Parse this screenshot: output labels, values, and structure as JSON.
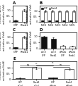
{
  "chart_data": [
    {
      "type": "bar",
      "title": "A",
      "y_label": "Relative Notch\nactivation (fold)",
      "categories": [
        "GFP",
        "Rheb1"
      ],
      "values": [
        0.12,
        1.0
      ],
      "errors": [
        0.04,
        0.08
      ],
      "colors": [
        "#111111",
        "#ffffff"
      ],
      "ylim": [
        0,
        1.4
      ],
      "yticks": [
        0,
        0.5,
        1.0
      ]
    },
    {
      "type": "bar",
      "title": "B",
      "y_label": "Relative Notch\nactivation (fold)",
      "categories": [
        "NIC1",
        "NIC2",
        "NIC3",
        "NIC4",
        "NIC5"
      ],
      "series": [
        {
          "name": "GFP",
          "color": "#111111",
          "values": [
            0.12,
            0.12,
            0.12,
            0.12,
            0.12
          ],
          "errors": [
            0.04,
            0.03,
            0.03,
            0.04,
            0.03
          ]
        },
        {
          "name": "Rheb1",
          "color": "#ffffff",
          "values": [
            1.0,
            1.0,
            1.0,
            1.0,
            1.0
          ],
          "errors": [
            0.09,
            0.08,
            0.07,
            0.09,
            0.08
          ]
        }
      ],
      "legend": "upper left",
      "ylim": [
        0,
        1.5
      ],
      "yticks": [
        0,
        0.5,
        1.0
      ]
    },
    {
      "type": "bar",
      "title": "C",
      "y_label": "Relative Notch\nactivation (fold)",
      "categories": [
        "GFP",
        "Rheb1"
      ],
      "values": [
        0.1,
        1.0
      ],
      "errors": [
        0.03,
        0.1
      ],
      "colors": [
        "#111111",
        "#ffffff"
      ],
      "ylim": [
        0,
        1.4
      ],
      "yticks": [
        0,
        0.5,
        1.0
      ]
    },
    {
      "type": "bar",
      "title": "D",
      "y_label": "Relative Notch\nactivation (fold)",
      "categories": [
        "siCtrl\nGFP",
        "siCtrl\nRheb1",
        "siRheb\nGFP",
        "siRheb\nRheb1"
      ],
      "values": [
        0.95,
        0.8,
        0.25,
        0.18
      ],
      "errors": [
        0.09,
        0.08,
        0.04,
        0.03
      ],
      "colors": [
        "#111111",
        "#111111",
        "#ffffff",
        "#ffffff"
      ],
      "ylim": [
        0,
        1.3
      ],
      "yticks": [
        0,
        0.5,
        1.0
      ]
    },
    {
      "type": "bar",
      "title": "E",
      "y_label": "Relative Notch\nactivation (fold)",
      "categories": [
        "GFP\nsiCtrl",
        "Rheb1\nsiCtrl",
        "GFP\nsiRheb",
        "Rheb1\nsiRheb"
      ],
      "values": [
        0.08,
        1.0,
        0.12,
        0.9
      ],
      "errors": [
        0.02,
        0.09,
        0.03,
        0.08
      ],
      "colors": [
        "#111111",
        "#ffffff",
        "#111111",
        "#ffffff"
      ],
      "ylim": [
        0,
        1.6
      ],
      "yticks": [
        0,
        0.5,
        1.0
      ],
      "annotations": [
        {
          "text": "ns",
          "x1": 0,
          "x2": 1,
          "y": 1.1
        },
        {
          "text": "ns",
          "x1": 2,
          "x2": 3,
          "y": 1.1
        },
        {
          "text": "**",
          "x1": 1,
          "x2": 3,
          "y": 1.3
        },
        {
          "text": "**",
          "x1": 0,
          "x2": 2,
          "y": 1.22
        }
      ]
    }
  ]
}
